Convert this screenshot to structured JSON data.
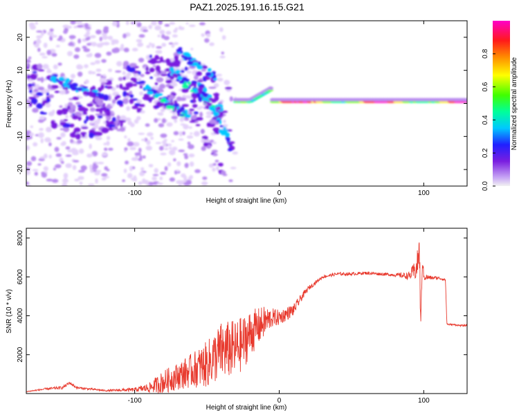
{
  "title": "PAZ1.2025.191.16.15.G21",
  "chart_data": [
    {
      "type": "heatmap",
      "xlabel": "Height of straight line (km)",
      "ylabel": "Frequency (Hz)",
      "xlim": [
        -175,
        130
      ],
      "ylim": [
        -25,
        25
      ],
      "xticks": [
        -100,
        0,
        100
      ],
      "yticks": [
        -20,
        -10,
        0,
        10,
        20
      ],
      "colorbar": {
        "label": "Normalized spectral amplitude",
        "range": [
          0.0,
          1.0
        ],
        "ticks": [
          0.0,
          0.2,
          0.4,
          0.6,
          0.8
        ],
        "colormap": "rainbow (purple-blue-cyan-green-yellow-red-magenta)"
      },
      "features": {
        "main_signal_band_hz": 0.5,
        "main_signal_x_range_km": [
          -30,
          130
        ]
      },
      "grid": false
    },
    {
      "type": "line",
      "xlabel": "Height of straight line (km)",
      "ylabel": "SNR (10 * v/v)",
      "xlim": [
        -175,
        130
      ],
      "ylim": [
        0,
        8500
      ],
      "xticks": [
        -100,
        0,
        100
      ],
      "yticks": [
        2000,
        4000,
        6000,
        8000
      ],
      "color": "#e83a2e",
      "series": [
        {
          "x": [
            -175,
            -160,
            -150,
            -145,
            -140,
            -120,
            -100,
            -90,
            -80,
            -70,
            -60,
            -50,
            -40,
            -30,
            -25,
            -20,
            -15,
            -10,
            -5,
            0,
            10,
            15,
            20,
            25,
            30,
            40,
            50,
            60,
            70,
            80,
            90,
            95,
            97,
            98,
            99,
            100,
            105,
            110,
            115,
            116,
            117,
            120,
            125,
            130
          ],
          "y": [
            100,
            250,
            300,
            550,
            300,
            150,
            200,
            300,
            600,
            900,
            1200,
            1500,
            2200,
            2300,
            2600,
            3100,
            3400,
            3700,
            3900,
            3900,
            4300,
            4900,
            5400,
            5700,
            6000,
            6150,
            6150,
            6200,
            6150,
            6100,
            6050,
            6400,
            7400,
            3200,
            7000,
            6000,
            5950,
            5950,
            5850,
            3600,
            3550,
            3550,
            3500,
            3500
          ],
          "noise": [
            20,
            60,
            80,
            80,
            60,
            40,
            100,
            250,
            600,
            700,
            900,
            1200,
            1500,
            1500,
            1400,
            1200,
            1000,
            800,
            500,
            400,
            300,
            200,
            120,
            100,
            80,
            80,
            80,
            80,
            80,
            80,
            200,
            600,
            900,
            900,
            500,
            200,
            100,
            80,
            60,
            50,
            40,
            40,
            40,
            40
          ]
        }
      ],
      "grid": false
    }
  ]
}
